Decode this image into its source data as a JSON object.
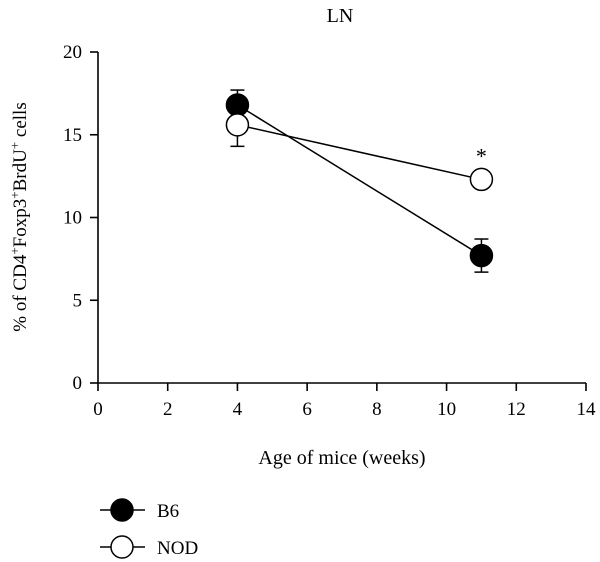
{
  "chart_data": {
    "type": "line",
    "title": "LN",
    "xlabel": "Age of mice (weeks)",
    "ylabel_parts": [
      "% of CD4",
      "+",
      "Foxp3",
      "+",
      "BrdU",
      "+",
      " cells"
    ],
    "xlim": [
      0,
      14
    ],
    "ylim": [
      0,
      20
    ],
    "x_ticks": [
      0,
      2,
      4,
      6,
      8,
      10,
      12,
      14
    ],
    "y_ticks": [
      0,
      5,
      10,
      15,
      20
    ],
    "grid": false,
    "legend_position": "bottom-left",
    "series": [
      {
        "name": "B6",
        "marker": "filled-circle",
        "color": "#000000",
        "x": [
          4,
          11
        ],
        "y": [
          16.8,
          7.7
        ],
        "error": [
          0.9,
          1.0
        ]
      },
      {
        "name": "NOD",
        "marker": "open-circle",
        "color": "#000000",
        "x": [
          4,
          11
        ],
        "y": [
          15.6,
          12.3
        ],
        "error": [
          1.3,
          0.0
        ]
      }
    ],
    "annotations": [
      {
        "text": "*",
        "x": 11,
        "y": 12.3
      }
    ]
  }
}
